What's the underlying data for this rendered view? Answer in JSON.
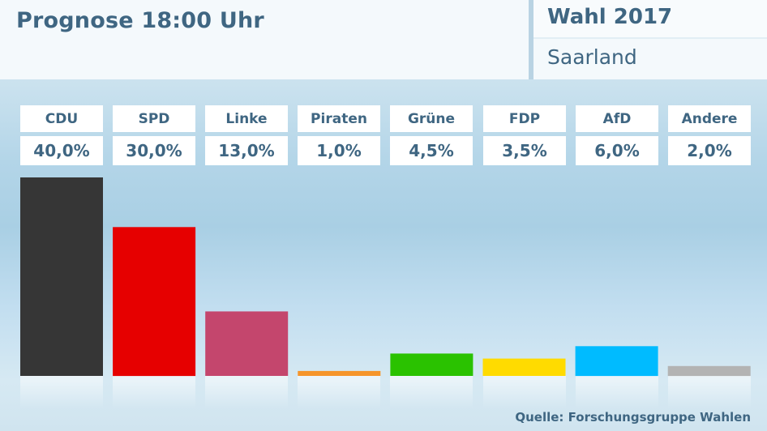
{
  "header": {
    "title": "Prognose 18:00 Uhr",
    "election": "Wahl 2017",
    "region": "Saarland"
  },
  "source": "Quelle: Forschungsgruppe Wahlen",
  "chart_data": {
    "type": "bar",
    "title": "Prognose 18:00 Uhr",
    "categories": [
      "CDU",
      "SPD",
      "Linke",
      "Piraten",
      "Grüne",
      "FDP",
      "AfD",
      "Andere"
    ],
    "value_labels": [
      "40,0%",
      "30,0%",
      "13,0%",
      "1,0%",
      "4,5%",
      "3,5%",
      "6,0%",
      "2,0%"
    ],
    "values": [
      40.0,
      30.0,
      13.0,
      1.0,
      4.5,
      3.5,
      6.0,
      2.0
    ],
    "colors": [
      "#363636",
      "#e60000",
      "#c4466d",
      "#f6952a",
      "#2ac200",
      "#ffdb00",
      "#00bbff",
      "#b3b3b3"
    ],
    "ylim": [
      0,
      40
    ],
    "grid": false,
    "legend": "none"
  }
}
